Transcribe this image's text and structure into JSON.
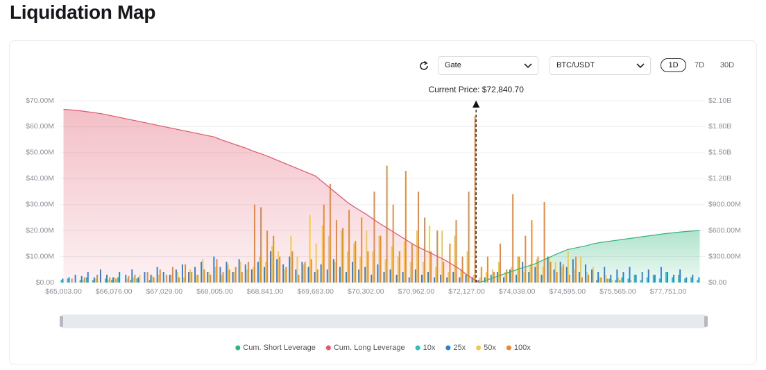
{
  "page_title": "Liquidation Map",
  "controls": {
    "exchange": "Gate",
    "pair": "BTC/USDT",
    "ranges": [
      "1D",
      "7D",
      "30D"
    ]
  },
  "chart_data": {
    "type": "bar",
    "annotation": "Current Price: $72,840.70",
    "categories": [
      "$65,003.00",
      null,
      null,
      null,
      null,
      null,
      null,
      null,
      "$66,076.00",
      null,
      null,
      null,
      null,
      null,
      null,
      null,
      "$67,029.00",
      null,
      null,
      null,
      null,
      null,
      null,
      null,
      "$68,005.00",
      null,
      null,
      null,
      null,
      null,
      null,
      null,
      "$68,841.00",
      null,
      null,
      null,
      null,
      null,
      null,
      null,
      "$69,683.00",
      null,
      null,
      null,
      null,
      null,
      null,
      null,
      "$70,302.00",
      null,
      null,
      null,
      null,
      null,
      null,
      null,
      "$70,962.00",
      null,
      null,
      null,
      null,
      null,
      null,
      null,
      "$72,127.00",
      null,
      null,
      null,
      null,
      null,
      null,
      null,
      "$74,038.00",
      null,
      null,
      null,
      null,
      null,
      null,
      null,
      "$74,595.00",
      null,
      null,
      null,
      null,
      null,
      null,
      null,
      "$75,565.00",
      null,
      null,
      null,
      null,
      null,
      null,
      null,
      "$77,751.00",
      null,
      null,
      null,
      null,
      null
    ],
    "ylim": [
      0,
      70
    ],
    "yticks": [
      {
        "value": 0,
        "label": "$0.00"
      },
      {
        "value": 10,
        "label": "$10.00M"
      },
      {
        "value": 20,
        "label": "$20.00M"
      },
      {
        "value": 30,
        "label": "$30.00M"
      },
      {
        "value": 40,
        "label": "$40.00M"
      },
      {
        "value": 50,
        "label": "$50.00M"
      },
      {
        "value": 60,
        "label": "$60.00M"
      },
      {
        "value": 70,
        "label": "$70.00M"
      }
    ],
    "y2lim": [
      0,
      2100
    ],
    "y2ticks": [
      {
        "value": 0,
        "label": "$0.00"
      },
      {
        "value": 300,
        "label": "$300.00M"
      },
      {
        "value": 600,
        "label": "$600.00M"
      },
      {
        "value": 900,
        "label": "$900.00M"
      },
      {
        "value": 1200,
        "label": "$1.20B"
      },
      {
        "value": 1500,
        "label": "$1.50B"
      },
      {
        "value": 1800,
        "label": "$1.80B"
      },
      {
        "value": 2100,
        "label": "$2.10B"
      }
    ],
    "grid": true,
    "legend": "bottom",
    "series": [
      {
        "name": "Cum. Short Leverage",
        "type": "area",
        "axis": "y2",
        "color": "#2fb57a",
        "values": [
          null,
          null,
          null,
          null,
          null,
          null,
          null,
          null,
          null,
          null,
          null,
          null,
          null,
          null,
          null,
          null,
          null,
          null,
          null,
          null,
          null,
          null,
          null,
          null,
          null,
          null,
          null,
          null,
          null,
          null,
          null,
          null,
          null,
          null,
          null,
          null,
          null,
          null,
          null,
          null,
          null,
          null,
          null,
          null,
          null,
          null,
          null,
          null,
          null,
          null,
          null,
          null,
          null,
          null,
          null,
          null,
          null,
          null,
          null,
          null,
          null,
          null,
          null,
          null,
          null,
          null,
          0,
          25,
          50,
          75,
          100,
          125,
          150,
          175,
          195,
          220,
          255,
          285,
          320,
          350,
          380,
          395,
          410,
          425,
          445,
          460,
          470,
          480,
          490,
          500,
          510,
          520,
          530,
          540,
          550,
          560,
          568,
          576,
          584,
          590,
          596,
          600
        ]
      },
      {
        "name": "Cum. Long Leverage",
        "type": "area",
        "axis": "y2",
        "color": "#e0566b",
        "values": [
          2000,
          1995,
          1988,
          1980,
          1970,
          1960,
          1950,
          1935,
          1920,
          1905,
          1890,
          1875,
          1860,
          1845,
          1830,
          1815,
          1800,
          1785,
          1770,
          1755,
          1740,
          1725,
          1710,
          1695,
          1680,
          1650,
          1625,
          1600,
          1575,
          1550,
          1520,
          1495,
          1470,
          1440,
          1410,
          1380,
          1350,
          1320,
          1290,
          1260,
          1230,
          1170,
          1110,
          1050,
          990,
          930,
          880,
          835,
          790,
          740,
          690,
          645,
          600,
          555,
          510,
          465,
          420,
          385,
          350,
          315,
          280,
          240,
          195,
          150,
          90,
          45,
          0,
          null,
          null,
          null,
          null,
          null,
          null,
          null,
          null,
          null,
          null,
          null,
          null,
          null,
          null,
          null,
          null,
          null,
          null,
          null,
          null,
          null,
          null,
          null,
          null,
          null,
          null,
          null,
          null,
          null,
          null,
          null,
          null,
          null,
          null,
          null
        ]
      },
      {
        "name": "10x",
        "type": "bar",
        "color": "#22c4c4",
        "values": [
          1,
          1.5,
          null,
          1,
          2,
          1,
          null,
          1.5,
          1,
          2,
          null,
          1,
          1.5,
          null,
          1,
          null,
          null,
          null,
          null,
          null,
          null,
          null,
          null,
          null,
          null,
          null,
          null,
          null,
          null,
          null,
          null,
          null,
          null,
          null,
          null,
          null,
          null,
          null,
          null,
          null,
          null,
          null,
          null,
          null,
          null,
          null,
          null,
          null,
          null,
          null,
          null,
          null,
          null,
          null,
          null,
          null,
          null,
          null,
          null,
          null,
          null,
          null,
          null,
          null,
          null,
          null,
          null,
          null,
          null,
          null,
          null,
          null,
          null,
          null,
          null,
          null,
          null,
          null,
          null,
          null,
          null,
          null,
          null,
          null,
          null,
          1,
          null,
          1.5,
          1,
          2,
          1.5,
          3,
          1,
          2,
          3,
          1.5,
          4,
          2,
          3,
          1.5,
          2,
          1
        ]
      },
      {
        "name": "25x",
        "type": "bar",
        "color": "#2f7fd4",
        "values": [
          1.5,
          2,
          3,
          2.5,
          4,
          2,
          5,
          3,
          2,
          4,
          3,
          5,
          2,
          4,
          3,
          6,
          4,
          3,
          5,
          7,
          4,
          6,
          8,
          4,
          10,
          6,
          8,
          4,
          9,
          7,
          5,
          8,
          6,
          12,
          9,
          7,
          10,
          5,
          8,
          6,
          4,
          7,
          5,
          9,
          6,
          4,
          8,
          5,
          6,
          3,
          7,
          4,
          5,
          3,
          4,
          2,
          5,
          3,
          4,
          2,
          3,
          2,
          4,
          2,
          3,
          2,
          1,
          2,
          3,
          4,
          2,
          5,
          3,
          8,
          4,
          6,
          3,
          10,
          5,
          8,
          6,
          9,
          4,
          7,
          5,
          4,
          6,
          3,
          5,
          4,
          6,
          3,
          4,
          5,
          3,
          6,
          4,
          3,
          5,
          2,
          3,
          2
        ]
      },
      {
        "name": "50x",
        "type": "bar",
        "color": "#f2c94c",
        "values": [
          null,
          null,
          null,
          1,
          null,
          1.5,
          null,
          1,
          2,
          null,
          1.5,
          2,
          3,
          null,
          2.5,
          3,
          null,
          3,
          4,
          2,
          5,
          3,
          9,
          4,
          6,
          3,
          7,
          4,
          8,
          5,
          6,
          10,
          8,
          14,
          12,
          5,
          18,
          10,
          7,
          26,
          15,
          22,
          18,
          8,
          20,
          12,
          15,
          10,
          20,
          12,
          18,
          9,
          14,
          10,
          16,
          8,
          20,
          8,
          22,
          6,
          20,
          4,
          18,
          5,
          12,
          3,
          2,
          4,
          5,
          8,
          4,
          6,
          10,
          4,
          7,
          9,
          6,
          10,
          8,
          6,
          12,
          5,
          10,
          4,
          6,
          2,
          3,
          1,
          2,
          null,
          1,
          null,
          null,
          null,
          null,
          null,
          null,
          null,
          null,
          null,
          null,
          null
        ]
      },
      {
        "name": "100x",
        "type": "bar",
        "color": "#e8883a",
        "values": [
          null,
          1.5,
          null,
          2,
          null,
          3,
          null,
          2,
          1.5,
          null,
          2.5,
          3,
          null,
          4,
          2,
          5,
          3,
          6,
          2,
          7,
          4,
          3,
          5,
          3,
          9,
          4,
          5,
          6,
          4,
          8,
          30,
          29,
          20,
          18,
          10,
          6,
          12,
          3,
          8,
          9,
          5,
          30,
          38,
          24,
          21,
          28,
          16,
          25,
          12,
          35,
          18,
          45,
          30,
          12,
          43,
          15,
          35,
          25,
          12,
          20,
          8,
          15,
          24,
          10,
          35,
          64,
          6,
          10,
          4,
          15,
          5,
          34,
          10,
          18,
          24,
          10,
          31,
          8,
          4,
          7,
          3,
          10,
          2,
          3,
          null,
          2,
          1.5,
          null,
          1,
          null,
          null,
          null,
          null,
          null,
          null,
          null,
          null,
          null,
          null,
          null,
          null,
          null
        ]
      }
    ]
  }
}
